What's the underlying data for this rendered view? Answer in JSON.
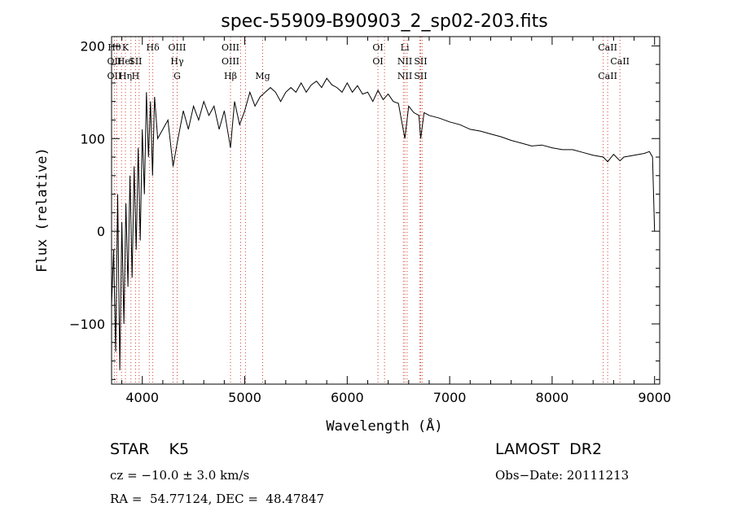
{
  "chart_data": {
    "type": "line",
    "title": "spec-55909-B90903_2_sp02-203.fits",
    "xlabel": "Wavelength (Å)",
    "ylabel": "Flux (relative)",
    "xlim": [
      3700,
      9050
    ],
    "ylim": [
      -165,
      210
    ],
    "xticks": [
      4000,
      5000,
      6000,
      7000,
      8000,
      9000
    ],
    "yticks": [
      -100,
      0,
      100,
      200
    ],
    "grid": false,
    "series": [
      {
        "x": [
          3700,
          3720,
          3740,
          3760,
          3780,
          3800,
          3820,
          3840,
          3860,
          3880,
          3900,
          3920,
          3940,
          3960,
          3980,
          4000,
          4020,
          4040,
          4060,
          4080,
          4100,
          4120,
          4150,
          4200,
          4250,
          4300,
          4340,
          4400,
          4450,
          4500,
          4550,
          4600,
          4650,
          4700,
          4750,
          4800,
          4861,
          4900,
          4950,
          5000,
          5050,
          5100,
          5150,
          5200,
          5250,
          5300,
          5350,
          5400,
          5450,
          5500,
          5550,
          5600,
          5650,
          5700,
          5750,
          5800,
          5850,
          5900,
          5950,
          6000,
          6050,
          6100,
          6150,
          6200,
          6250,
          6300,
          6350,
          6400,
          6450,
          6500,
          6563,
          6600,
          6650,
          6700,
          6717,
          6750,
          6800,
          6900,
          7000,
          7100,
          7200,
          7300,
          7400,
          7500,
          7600,
          7700,
          7800,
          7900,
          8000,
          8100,
          8200,
          8300,
          8400,
          8500,
          8542,
          8600,
          8662,
          8700,
          8800,
          8900,
          8950,
          8980,
          9000
        ],
        "y": [
          -80,
          -20,
          -130,
          40,
          -150,
          10,
          -100,
          30,
          -60,
          60,
          -50,
          70,
          -20,
          90,
          -10,
          110,
          40,
          150,
          80,
          140,
          60,
          145,
          100,
          110,
          120,
          70,
          95,
          130,
          110,
          135,
          120,
          140,
          125,
          135,
          110,
          130,
          90,
          140,
          115,
          130,
          150,
          135,
          145,
          150,
          155,
          150,
          140,
          150,
          155,
          150,
          160,
          150,
          158,
          162,
          155,
          165,
          158,
          155,
          150,
          160,
          150,
          157,
          148,
          150,
          140,
          152,
          142,
          148,
          140,
          138,
          100,
          135,
          128,
          125,
          100,
          128,
          125,
          122,
          118,
          115,
          110,
          108,
          105,
          102,
          98,
          95,
          92,
          93,
          90,
          88,
          88,
          85,
          82,
          80,
          75,
          83,
          76,
          80,
          82,
          84,
          86,
          80,
          0
        ]
      }
    ],
    "lines": [
      {
        "upper": "Hθ",
        "middle": "OII",
        "lower": "OII",
        "x": 3727
      },
      {
        "upper": "K",
        "middle": "HeI",
        "lower": "Hη",
        "x": 3835
      },
      {
        "upper": "",
        "middle": "SII",
        "lower": "H",
        "x": 3934
      },
      {
        "upper": "Hδ",
        "middle": "",
        "lower": "",
        "x": 4102
      },
      {
        "upper": "OIII",
        "middle": "Hγ",
        "lower": "G",
        "x": 4340
      },
      {
        "upper": "OIII",
        "middle": "OIII",
        "lower": "Hβ",
        "x": 4861
      },
      {
        "upper": "",
        "middle": "",
        "lower": "Mg",
        "x": 5175
      },
      {
        "upper": "OI",
        "middle": "OI",
        "lower": "",
        "x": 6300
      },
      {
        "upper": "Li",
        "middle": "NII",
        "lower": "NII",
        "x": 6563
      },
      {
        "upper": "",
        "middle": "SII",
        "lower": "SII",
        "x": 6717
      },
      {
        "upper": "CaII",
        "middle": "",
        "lower": "CaII",
        "x": 8542
      },
      {
        "upper": "",
        "middle": "CaII",
        "lower": "",
        "x": 8662
      }
    ],
    "line_positions": [
      3727,
      3750,
      3797,
      3835,
      3889,
      3934,
      3969,
      4068,
      4102,
      4300,
      4340,
      4861,
      4959,
      5007,
      5175,
      6300,
      6364,
      6548,
      6563,
      6584,
      6708,
      6717,
      6731,
      8498,
      8542,
      8662
    ]
  },
  "info": {
    "object": "STAR    K5",
    "survey": "LAMOST  DR2",
    "cz": "cz = −10.0 ± 3.0 km/s",
    "obsdate": "Obs−Date: 20111213",
    "coords": "RA =  54.77124, DEC =  48.47847"
  }
}
